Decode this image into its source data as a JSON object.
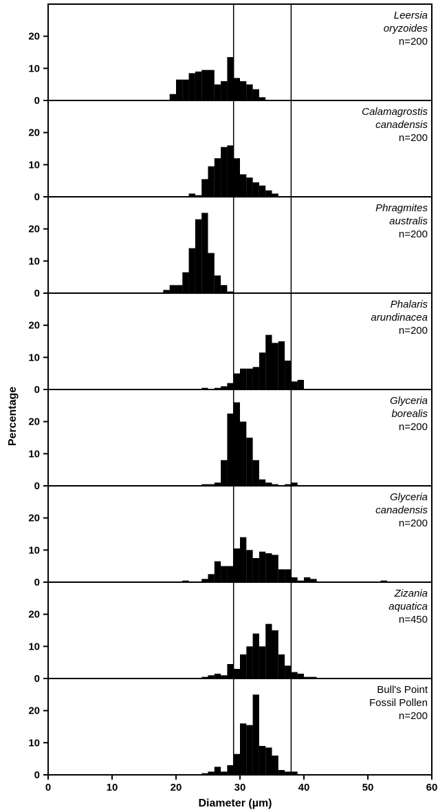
{
  "chart_data": {
    "type": "bar",
    "xlabel": "Diameter (µm)",
    "ylabel": "Percentage",
    "xlim": [
      0,
      60
    ],
    "xticks": [
      0,
      10,
      20,
      30,
      40,
      50,
      60
    ],
    "ylim": [
      0,
      30
    ],
    "yticks": [
      0,
      10,
      20
    ],
    "bin_width": 1,
    "reference_lines_x": [
      29,
      38
    ],
    "grid": false,
    "panels": [
      {
        "label_lines": [
          "Leersia",
          "oryzoides"
        ],
        "label_italic": true,
        "n_label": "n=200",
        "bins": [
          [
            19.5,
            2
          ],
          [
            20.5,
            6.5
          ],
          [
            21.5,
            6.5
          ],
          [
            22.5,
            8.5
          ],
          [
            23.5,
            9
          ],
          [
            24.5,
            9.5
          ],
          [
            25.5,
            9.5
          ],
          [
            26.5,
            5
          ],
          [
            27.5,
            6
          ],
          [
            28.5,
            13.5
          ],
          [
            29.5,
            7
          ],
          [
            30.5,
            6
          ],
          [
            31.5,
            5
          ],
          [
            32.5,
            3.5
          ],
          [
            33.5,
            1
          ]
        ]
      },
      {
        "label_lines": [
          "Calamagrostis",
          "canadensis"
        ],
        "label_italic": true,
        "n_label": "n=200",
        "bins": [
          [
            22.5,
            1
          ],
          [
            23.5,
            0.5
          ],
          [
            24.5,
            5.5
          ],
          [
            25.5,
            9.5
          ],
          [
            26.5,
            12
          ],
          [
            27.5,
            15.5
          ],
          [
            28.5,
            16
          ],
          [
            29.5,
            12
          ],
          [
            30.5,
            7
          ],
          [
            31.5,
            6
          ],
          [
            32.5,
            4.5
          ],
          [
            33.5,
            3.5
          ],
          [
            34.5,
            2
          ],
          [
            35.5,
            1
          ]
        ]
      },
      {
        "label_lines": [
          "Phragmites",
          "australis"
        ],
        "label_italic": true,
        "n_label": "n=200",
        "bins": [
          [
            18.5,
            1
          ],
          [
            19.5,
            2.5
          ],
          [
            20.5,
            2.5
          ],
          [
            21.5,
            6.5
          ],
          [
            22.5,
            14
          ],
          [
            23.5,
            23
          ],
          [
            24.5,
            25
          ],
          [
            25.5,
            12.5
          ],
          [
            26.5,
            5.5
          ],
          [
            27.5,
            2.5
          ],
          [
            28.5,
            0.5
          ]
        ]
      },
      {
        "label_lines": [
          "Phalaris",
          "arundinacea"
        ],
        "label_italic": true,
        "n_label": "n=200",
        "bins": [
          [
            24.5,
            0.5
          ],
          [
            26.5,
            0.5
          ],
          [
            27.5,
            1
          ],
          [
            28.5,
            2
          ],
          [
            29.5,
            5
          ],
          [
            30.5,
            6.5
          ],
          [
            31.5,
            6.5
          ],
          [
            32.5,
            7
          ],
          [
            33.5,
            11.5
          ],
          [
            34.5,
            17
          ],
          [
            35.5,
            14.5
          ],
          [
            36.5,
            15
          ],
          [
            37.5,
            9
          ],
          [
            38.5,
            2.5
          ],
          [
            39.5,
            3
          ]
        ]
      },
      {
        "label_lines": [
          "Glyceria",
          "borealis"
        ],
        "label_italic": true,
        "n_label": "n=200",
        "bins": [
          [
            24.5,
            0.5
          ],
          [
            25.5,
            0.5
          ],
          [
            26.5,
            1
          ],
          [
            27.5,
            8
          ],
          [
            28.5,
            22.5
          ],
          [
            29.5,
            26
          ],
          [
            30.5,
            20
          ],
          [
            31.5,
            15
          ],
          [
            32.5,
            8
          ],
          [
            33.5,
            2
          ],
          [
            34.5,
            1
          ],
          [
            35.5,
            0.5
          ],
          [
            37.5,
            0.5
          ],
          [
            38.5,
            1
          ]
        ]
      },
      {
        "label_lines": [
          "Glyceria",
          "canadensis"
        ],
        "label_italic": true,
        "n_label": "n=200",
        "bins": [
          [
            21.5,
            0.5
          ],
          [
            24.5,
            1
          ],
          [
            25.5,
            2.5
          ],
          [
            26.5,
            6.5
          ],
          [
            27.5,
            5
          ],
          [
            28.5,
            5
          ],
          [
            29.5,
            10.5
          ],
          [
            30.5,
            14
          ],
          [
            31.5,
            10
          ],
          [
            32.5,
            7.5
          ],
          [
            33.5,
            9.5
          ],
          [
            34.5,
            9
          ],
          [
            35.5,
            8.5
          ],
          [
            36.5,
            4
          ],
          [
            37.5,
            4
          ],
          [
            38.5,
            1.5
          ],
          [
            39.5,
            0.5
          ],
          [
            40.5,
            1.5
          ],
          [
            41.5,
            1
          ],
          [
            52.5,
            0.5
          ]
        ]
      },
      {
        "label_lines": [
          "Zizania",
          "aquatica"
        ],
        "label_italic": true,
        "n_label": "n=450",
        "bins": [
          [
            24.5,
            0.5
          ],
          [
            25.5,
            1
          ],
          [
            26.5,
            1.5
          ],
          [
            27.5,
            1
          ],
          [
            28.5,
            4.5
          ],
          [
            29.5,
            3
          ],
          [
            30.5,
            7.5
          ],
          [
            31.5,
            10
          ],
          [
            32.5,
            14
          ],
          [
            33.5,
            10
          ],
          [
            34.5,
            17
          ],
          [
            35.5,
            15
          ],
          [
            36.5,
            7.5
          ],
          [
            37.5,
            4
          ],
          [
            38.5,
            2
          ],
          [
            39.5,
            1.5
          ],
          [
            40.5,
            0.5
          ],
          [
            41.5,
            0.5
          ]
        ]
      },
      {
        "label_lines": [
          "Bull's Point",
          "Fossil Pollen"
        ],
        "label_italic": false,
        "n_label": "n=200",
        "bins": [
          [
            24.5,
            0.5
          ],
          [
            25.5,
            1
          ],
          [
            26.5,
            2.5
          ],
          [
            27.5,
            1
          ],
          [
            28.5,
            3
          ],
          [
            29.5,
            6.5
          ],
          [
            30.5,
            16
          ],
          [
            31.5,
            15.5
          ],
          [
            32.5,
            25
          ],
          [
            33.5,
            9
          ],
          [
            34.5,
            8.5
          ],
          [
            35.5,
            6
          ],
          [
            36.5,
            1.5
          ],
          [
            37.5,
            1
          ],
          [
            38.5,
            1
          ]
        ]
      }
    ]
  }
}
